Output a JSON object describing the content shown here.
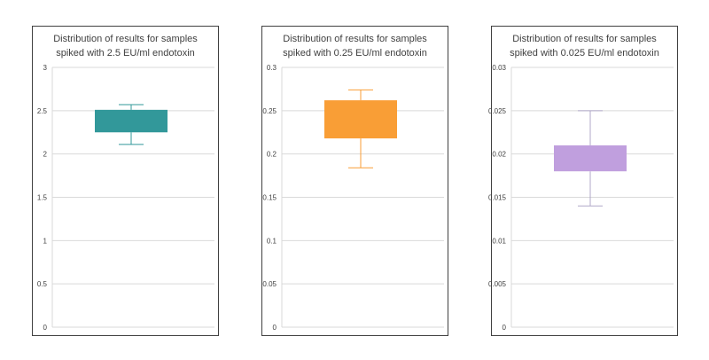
{
  "charts": [
    {
      "title_lines": [
        "Distribution of results for samples",
        "spiked with 2.5 EU/ml endotoxin"
      ],
      "box_color": "#32989A",
      "whisker_color": "#32989A",
      "yticks": [
        "0",
        "0.5",
        "1",
        "1.5",
        "2",
        "2.5",
        "3"
      ],
      "ylim": [
        0,
        3
      ],
      "chart_data": {
        "type": "box",
        "min": 2.11,
        "q1": 2.25,
        "q3": 2.51,
        "max": 2.57
      }
    },
    {
      "title_lines": [
        "Distribution of results for samples",
        "spiked with 0.25 EU/ml endotoxin"
      ],
      "box_color": "#F99E36",
      "whisker_color": "#F99E36",
      "yticks": [
        "0",
        "0.05",
        "0.1",
        "0.15",
        "0.2",
        "0.25",
        "0.3"
      ],
      "ylim": [
        0,
        0.3
      ],
      "chart_data": {
        "type": "box",
        "min": 0.184,
        "q1": 0.218,
        "q3": 0.262,
        "max": 0.274
      }
    },
    {
      "title_lines": [
        "Distribution of results for samples",
        "spiked with 0.025 EU/ml endotoxin"
      ],
      "box_color": "#C09FDE",
      "whisker_color": "#B0A8C8",
      "yticks": [
        "0",
        "0.005",
        "0.01",
        "0.015",
        "0.02",
        "0.025",
        "0.03"
      ],
      "ylim": [
        0,
        0.03
      ],
      "chart_data": {
        "type": "box",
        "min": 0.014,
        "q1": 0.018,
        "q3": 0.021,
        "max": 0.025
      }
    }
  ]
}
